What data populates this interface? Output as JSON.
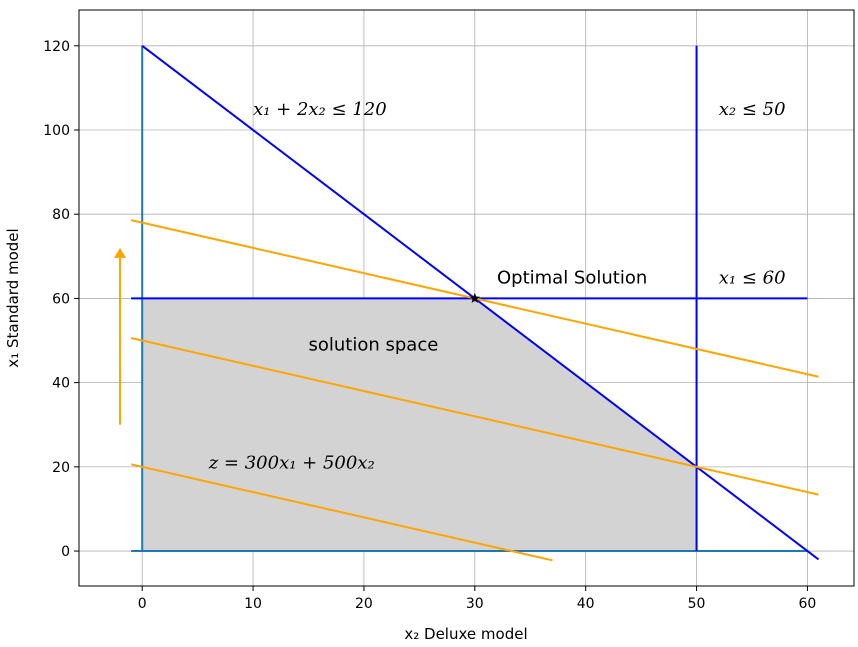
{
  "chart_data": {
    "type": "line",
    "xlabel": "x₂ Deluxe model",
    "ylabel": "x₁ Standard model",
    "xlim": [
      -5.7,
      64.2
    ],
    "ylim": [
      -8.3,
      128.5
    ],
    "xticks": [
      0,
      10,
      20,
      30,
      40,
      50,
      60
    ],
    "yticks": [
      0,
      20,
      40,
      60,
      80,
      100,
      120
    ],
    "grid": true,
    "colors": {
      "constraint": "#0000ff",
      "axis_line": "#1f77b4",
      "objective": "#ffa500",
      "region": "#d3d3d3",
      "grid": "#b0b0b0"
    },
    "feasible_region": {
      "label": "solution space",
      "vertices": [
        [
          0,
          0
        ],
        [
          0,
          60
        ],
        [
          30,
          60
        ],
        [
          50,
          20
        ],
        [
          50,
          0
        ]
      ]
    },
    "series": [
      {
        "kind": "axis",
        "points": [
          [
            -1,
            0
          ],
          [
            60,
            0
          ]
        ]
      },
      {
        "kind": "axis",
        "points": [
          [
            0,
            0
          ],
          [
            0,
            120
          ]
        ]
      },
      {
        "kind": "constraint",
        "points": [
          [
            0,
            120
          ],
          [
            61,
            -2
          ]
        ]
      },
      {
        "kind": "constraint",
        "points": [
          [
            -1,
            60
          ],
          [
            60,
            60
          ]
        ]
      },
      {
        "kind": "constraint",
        "points": [
          [
            50,
            0
          ],
          [
            50,
            120
          ]
        ]
      },
      {
        "kind": "objective",
        "points": [
          [
            -1,
            20.6
          ],
          [
            37,
            -2.2
          ]
        ]
      },
      {
        "kind": "objective",
        "points": [
          [
            -1,
            50.6
          ],
          [
            61,
            13.4
          ]
        ]
      },
      {
        "kind": "objective",
        "points": [
          [
            -1,
            78.6
          ],
          [
            61,
            41.4
          ]
        ]
      }
    ],
    "optimal_point": {
      "x": 30,
      "y": 60,
      "marker": "star"
    },
    "arrow": {
      "from": [
        -2,
        30
      ],
      "to": [
        -2,
        72
      ]
    },
    "annotations": [
      {
        "text": "x₁ + 2x₂ ≤ 120",
        "x": 10,
        "y": 105
      },
      {
        "text": "x₂ ≤ 50",
        "x": 52,
        "y": 105
      },
      {
        "text": "Optimal Solution",
        "x": 32,
        "y": 65
      },
      {
        "text": "x₁ ≤ 60",
        "x": 52,
        "y": 65
      },
      {
        "text": "solution space",
        "x": 15,
        "y": 49
      },
      {
        "text": "z = 300x₁ + 500x₂",
        "x": 6,
        "y": 21
      }
    ]
  }
}
